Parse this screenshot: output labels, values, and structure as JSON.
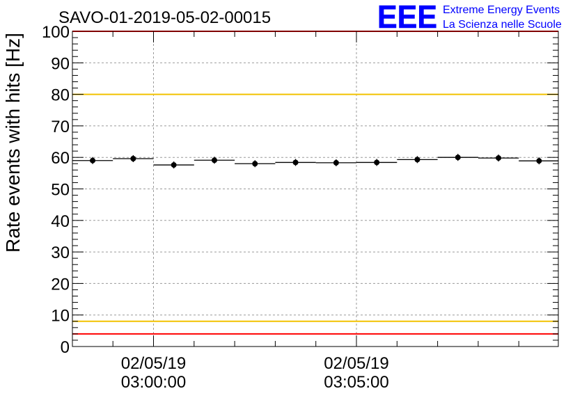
{
  "chart_data": {
    "type": "scatter",
    "title": "SAVO-01-2019-05-02-00015",
    "ylabel": "Rate events with hits [Hz]",
    "xlabel": "",
    "ylim": [
      0,
      100
    ],
    "yticks": [
      0,
      10,
      20,
      30,
      40,
      50,
      60,
      70,
      80,
      90,
      100
    ],
    "x_tick_labels": [
      {
        "date": "02/05/19",
        "time": "03:00:00"
      },
      {
        "date": "02/05/19",
        "time": "03:05:00"
      }
    ],
    "grid": true,
    "x_minutes": [
      -1.5,
      -0.5,
      0.5,
      1.5,
      2.5,
      3.5,
      4.5,
      5.5,
      6.5,
      7.5,
      8.5,
      9.5
    ],
    "values": [
      59.0,
      59.6,
      57.6,
      59.1,
      58.0,
      58.4,
      58.3,
      58.4,
      59.3,
      60.0,
      59.8,
      58.9
    ],
    "reference_lines": [
      {
        "value": 100,
        "color": "#ff0000"
      },
      {
        "value": 80,
        "color": "#f2c200"
      },
      {
        "value": 8,
        "color": "#f2c200"
      },
      {
        "value": 4,
        "color": "#ff0000"
      }
    ]
  },
  "logo": {
    "mark": "EEE",
    "line1": "Extreme Energy Events",
    "line2": "La Scienza nelle Scuole",
    "color": "#0000ff"
  }
}
